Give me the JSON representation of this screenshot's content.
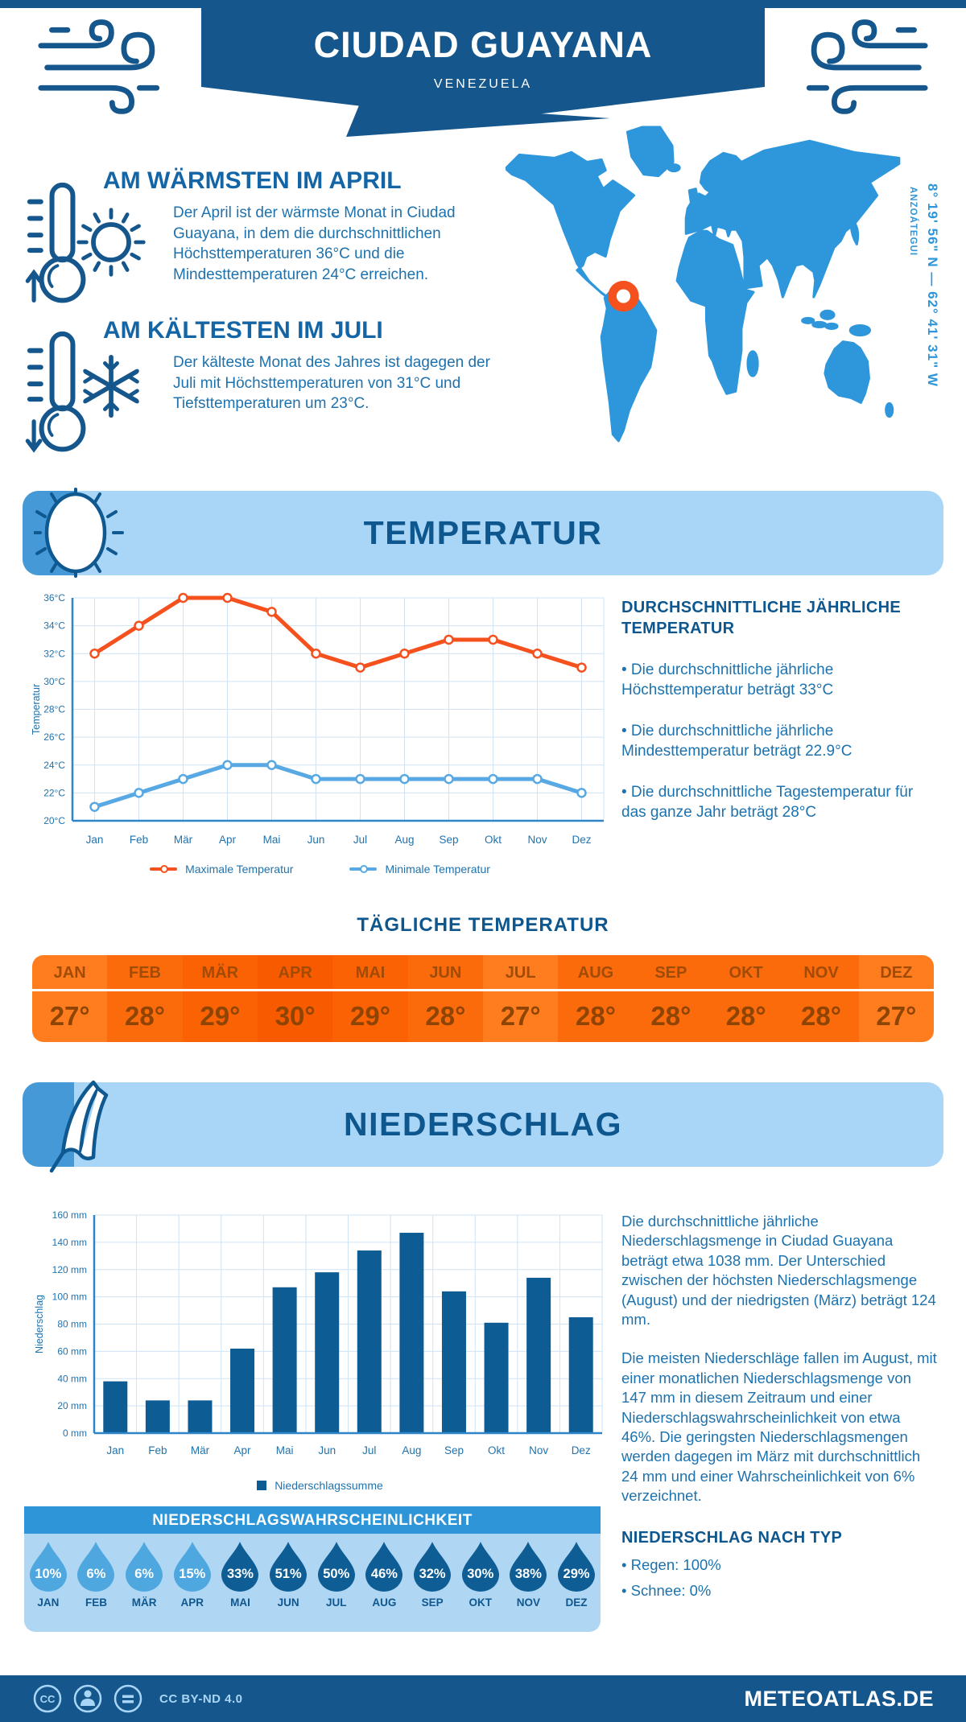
{
  "header": {
    "title": "CIUDAD GUAYANA",
    "subtitle": "VENEZUELA"
  },
  "map": {
    "coords": "8° 19' 56\" N — 62° 41' 31\" W",
    "region": "ANZOÁTEGUI"
  },
  "warmest": {
    "title": "AM WÄRMSTEN IM APRIL",
    "text": "Der April ist der wärmste Monat in Ciudad Guayana, in dem die durchschnittlichen Höchsttemperaturen 36°C und die Mindesttemperaturen 24°C erreichen."
  },
  "coldest": {
    "title": "AM KÄLTESTEN IM JULI",
    "text": "Der kälteste Monat des Jahres ist dagegen der Juli mit Höchsttemperaturen von 31°C und Tiefsttemperaturen um 23°C."
  },
  "temperature_section": {
    "banner": "TEMPERATUR",
    "annual": {
      "title": "DURCHSCHNITTLICHE JÄHRLICHE TEMPERATUR",
      "bullets": [
        "• Die durchschnittliche jährliche Höchsttemperatur beträgt 33°C",
        "• Die durchschnittliche jährliche Mindesttemperatur beträgt 22.9°C",
        "• Die durchschnittliche Tagestemperatur für das ganze Jahr beträgt 28°C"
      ]
    },
    "daily": {
      "title": "TÄGLICHE TEMPERATUR",
      "months": [
        "JAN",
        "FEB",
        "MÄR",
        "APR",
        "MAI",
        "JUN",
        "JUL",
        "AUG",
        "SEP",
        "OKT",
        "NOV",
        "DEZ"
      ],
      "values": [
        "27°",
        "28°",
        "29°",
        "30°",
        "29°",
        "28°",
        "27°",
        "28°",
        "28°",
        "28°",
        "28°",
        "27°"
      ],
      "cell_colors": [
        "#FF7D1F",
        "#FC6B0B",
        "#FA6203",
        "#F85A00",
        "#FA6203",
        "#FC6B0B",
        "#FF7D1F",
        "#FC6B0B",
        "#FC6B0B",
        "#FC6B0B",
        "#FC6B0B",
        "#FF7D1F"
      ]
    }
  },
  "precipitation_section": {
    "banner": "NIEDERSCHLAG",
    "paragraphs": [
      "Die durchschnittliche jährliche Niederschlagsmenge in Ciudad Guayana beträgt etwa 1038 mm. Der Unterschied zwischen der höchsten Niederschlagsmenge (August) und der niedrigsten (März) beträgt 124 mm.",
      "Die meisten Niederschläge fallen im August, mit einer monatlichen Niederschlagsmenge von 147 mm in diesem Zeitraum und einer Niederschlagswahrscheinlichkeit von etwa 46%. Die geringsten Niederschlagsmengen werden dagegen im März mit durchschnittlich 24 mm und einer Wahrscheinlichkeit von 6% verzeichnet."
    ],
    "by_type": {
      "title": "NIEDERSCHLAG NACH TYP",
      "items": [
        "• Regen: 100%",
        "• Schnee: 0%"
      ]
    },
    "probability": {
      "title": "NIEDERSCHLAGSWAHRSCHEINLICHKEIT",
      "months": [
        "JAN",
        "FEB",
        "MÄR",
        "APR",
        "MAI",
        "JUN",
        "JUL",
        "AUG",
        "SEP",
        "OKT",
        "NOV",
        "DEZ"
      ],
      "values": [
        "10%",
        "6%",
        "6%",
        "15%",
        "33%",
        "51%",
        "50%",
        "46%",
        "32%",
        "30%",
        "38%",
        "29%"
      ],
      "dark": [
        false,
        false,
        false,
        false,
        true,
        true,
        true,
        true,
        true,
        true,
        true,
        true
      ]
    }
  },
  "footer": {
    "license": "CC BY-ND 4.0",
    "site": "METEOATLAS.DE"
  },
  "icons": [
    "wind-icon",
    "thermometer-up-icon",
    "thermometer-down-icon",
    "sun-icon",
    "snowflake-icon",
    "umbrella-icon",
    "droplet-icon",
    "cc-icon",
    "cc-person-icon",
    "cc-nd-icon",
    "map-marker-icon"
  ],
  "colors": {
    "dark_blue": "#15578C",
    "heading_blue": "#0E568E",
    "text_blue": "#1D72AE",
    "tick_blue": "#2173AE",
    "grid": "#CFE3F4",
    "axis": "#2E86C8",
    "map_blue": "#2E97DC",
    "marker_orange": "#F4511E",
    "banner_light": "#A9D5F6",
    "accent_medium": "#4599D7",
    "prob_header": "#2E96D8",
    "panel_light": "#AFD7F4",
    "drop_light": "#4FA7E0",
    "drop_dark": "#0F5D95",
    "bar_blue": "#0E5C94"
  },
  "chart_data": [
    {
      "type": "line",
      "title": "Temperaturverlauf",
      "categories": [
        "Jan",
        "Feb",
        "Mär",
        "Apr",
        "Mai",
        "Jun",
        "Jul",
        "Aug",
        "Sep",
        "Okt",
        "Nov",
        "Dez"
      ],
      "series": [
        {
          "name": "Maximale Temperatur",
          "color": "#F4511E",
          "values": [
            32,
            34,
            36,
            36,
            35,
            32,
            31,
            32,
            33,
            33,
            32,
            31
          ]
        },
        {
          "name": "Minimale Temperatur",
          "color": "#58A9E3",
          "values": [
            21,
            22,
            23,
            24,
            24,
            23,
            23,
            23,
            23,
            23,
            23,
            22
          ]
        }
      ],
      "xlabel": "",
      "ylabel": "Temperatur",
      "ylim": [
        20,
        36
      ],
      "ytick_step": 2,
      "ytick_suffix": "°C",
      "grid": true,
      "legend_position": "bottom"
    },
    {
      "type": "bar",
      "title": "Niederschlagssumme",
      "categories": [
        "Jan",
        "Feb",
        "Mär",
        "Apr",
        "Mai",
        "Jun",
        "Jul",
        "Aug",
        "Sep",
        "Okt",
        "Nov",
        "Dez"
      ],
      "values": [
        38,
        24,
        24,
        62,
        107,
        118,
        134,
        147,
        104,
        81,
        114,
        85
      ],
      "legend": "Niederschlagssumme",
      "xlabel": "",
      "ylabel": "Niederschlag",
      "ylim": [
        0,
        160
      ],
      "ytick_step": 20,
      "ytick_suffix": " mm",
      "grid": true,
      "color": "#0E5C94",
      "legend_position": "bottom"
    }
  ]
}
